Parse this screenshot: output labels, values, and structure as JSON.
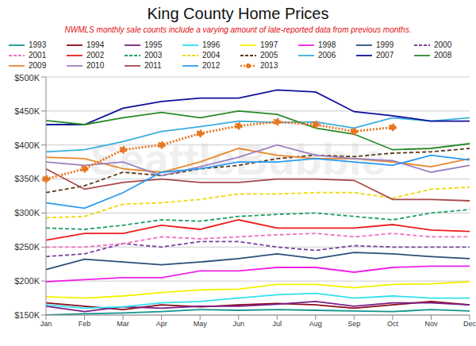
{
  "chart_data": {
    "type": "line",
    "title": "King County Home Prices",
    "subtitle": "NWMLS monthly sale counts include a varying amount of late-reported data from previous months.",
    "watermark": "SeattleBubble",
    "categories": [
      "Jan",
      "Feb",
      "Mar",
      "Apr",
      "May",
      "Jun",
      "Jul",
      "Aug",
      "Sep",
      "Oct",
      "Nov",
      "Dec"
    ],
    "ylim": [
      150000,
      500000
    ],
    "yticks": [
      {
        "value": 150000,
        "label": "$150K"
      },
      {
        "value": 200000,
        "label": "$200K"
      },
      {
        "value": 250000,
        "label": "$250K"
      },
      {
        "value": 300000,
        "label": "$300K"
      },
      {
        "value": 350000,
        "label": "$350K"
      },
      {
        "value": 400000,
        "label": "$400K"
      },
      {
        "value": 450000,
        "label": "$450K"
      },
      {
        "value": 500000,
        "label": "$500K"
      }
    ],
    "grid": true,
    "legend": "top",
    "series": [
      {
        "name": "1993",
        "color": "#13958f",
        "line_style": "solid",
        "values": [
          150000,
          152000,
          153000,
          155000,
          158000,
          157000,
          158000,
          157000,
          156000,
          155000,
          158000,
          156000
        ]
      },
      {
        "name": "1994",
        "color": "#8b0a1a",
        "line_style": "solid",
        "values": [
          168000,
          163000,
          158000,
          165000,
          162000,
          165000,
          167000,
          165000,
          160000,
          165000,
          170000,
          165000
        ]
      },
      {
        "name": "1995",
        "color": "#7a1f86",
        "line_style": "solid",
        "values": [
          163000,
          155000,
          162000,
          160000,
          163000,
          163000,
          166000,
          170000,
          163000,
          168000,
          168000,
          165000
        ]
      },
      {
        "name": "1996",
        "color": "#33e0f0",
        "line_style": "solid",
        "values": [
          165000,
          160000,
          162000,
          168000,
          170000,
          175000,
          180000,
          182000,
          175000,
          178000,
          175000,
          175000
        ]
      },
      {
        "name": "1997",
        "color": "#f2f200",
        "line_style": "solid",
        "values": [
          177000,
          175000,
          178000,
          183000,
          187000,
          188000,
          195000,
          195000,
          190000,
          195000,
          196000,
          199000
        ]
      },
      {
        "name": "1998",
        "color": "#f020e8",
        "line_style": "solid",
        "values": [
          199000,
          202000,
          205000,
          205000,
          215000,
          215000,
          220000,
          220000,
          213000,
          220000,
          222000,
          222000
        ]
      },
      {
        "name": "1999",
        "color": "#2b4f7a",
        "line_style": "solid",
        "values": [
          217000,
          232000,
          228000,
          224000,
          228000,
          233000,
          240000,
          233000,
          242000,
          240000,
          236000,
          233000
        ]
      },
      {
        "name": "2000",
        "color": "#7a3fa0",
        "line_style": "dashed",
        "values": [
          236000,
          240000,
          255000,
          250000,
          258000,
          258000,
          250000,
          245000,
          252000,
          250000,
          250000,
          250000
        ]
      },
      {
        "name": "2001",
        "color": "#f070c0",
        "line_style": "dashed",
        "values": [
          250000,
          250000,
          255000,
          265000,
          262000,
          265000,
          268000,
          270000,
          265000,
          270000,
          265000,
          265000
        ]
      },
      {
        "name": "2002",
        "color": "#ee1c1c",
        "line_style": "solid",
        "values": [
          260000,
          270000,
          270000,
          282000,
          276000,
          290000,
          278000,
          278000,
          278000,
          283000,
          275000,
          273000
        ]
      },
      {
        "name": "2003",
        "color": "#1aa060",
        "line_style": "dashed",
        "values": [
          278000,
          276000,
          282000,
          290000,
          288000,
          295000,
          298000,
          300000,
          295000,
          290000,
          300000,
          305000
        ]
      },
      {
        "name": "2004",
        "color": "#f0d800",
        "line_style": "dashed",
        "values": [
          293000,
          295000,
          313000,
          315000,
          320000,
          328000,
          328000,
          330000,
          330000,
          322000,
          335000,
          338000
        ]
      },
      {
        "name": "2005",
        "color": "#5a3a1a",
        "line_style": "dashed",
        "values": [
          330000,
          340000,
          360000,
          355000,
          365000,
          370000,
          380000,
          385000,
          383000,
          388000,
          390000,
          395000
        ]
      },
      {
        "name": "2006",
        "color": "#3aaee0",
        "line_style": "solid",
        "values": [
          390000,
          393000,
          405000,
          420000,
          427000,
          435000,
          433000,
          434000,
          425000,
          440000,
          435000,
          440000
        ]
      },
      {
        "name": "2007",
        "color": "#10109a",
        "line_style": "solid",
        "values": [
          430000,
          430000,
          454000,
          464000,
          469000,
          469000,
          481000,
          478000,
          449000,
          443000,
          435000,
          435000
        ]
      },
      {
        "name": "2008",
        "color": "#2a8a2a",
        "line_style": "solid",
        "values": [
          436000,
          430000,
          440000,
          448000,
          440000,
          450000,
          445000,
          425000,
          416000,
          393000,
          395000,
          402000
        ]
      },
      {
        "name": "2009",
        "color": "#e8882e",
        "line_style": "solid",
        "values": [
          382000,
          380000,
          365000,
          360000,
          375000,
          395000,
          385000,
          380000,
          380000,
          375000,
          368000,
          380000
        ]
      },
      {
        "name": "2010",
        "color": "#9a80c0",
        "line_style": "solid",
        "values": [
          375000,
          370000,
          375000,
          355000,
          368000,
          382000,
          400000,
          385000,
          380000,
          377000,
          360000,
          370000
        ]
      },
      {
        "name": "2011",
        "color": "#a84848",
        "line_style": "solid",
        "values": [
          365000,
          335000,
          345000,
          350000,
          345000,
          345000,
          350000,
          350000,
          348000,
          320000,
          320000,
          318000
        ]
      },
      {
        "name": "2012",
        "color": "#2a9cf0",
        "line_style": "solid",
        "values": [
          315000,
          307000,
          330000,
          360000,
          365000,
          375000,
          375000,
          380000,
          375000,
          370000,
          385000,
          378000
        ]
      },
      {
        "name": "2013",
        "color": "#e87722",
        "line_style": "dotted",
        "marker": "circle",
        "values": [
          350000,
          365000,
          393000,
          400000,
          417000,
          428000,
          434000,
          430000,
          420000,
          426000,
          null,
          null
        ]
      }
    ]
  }
}
